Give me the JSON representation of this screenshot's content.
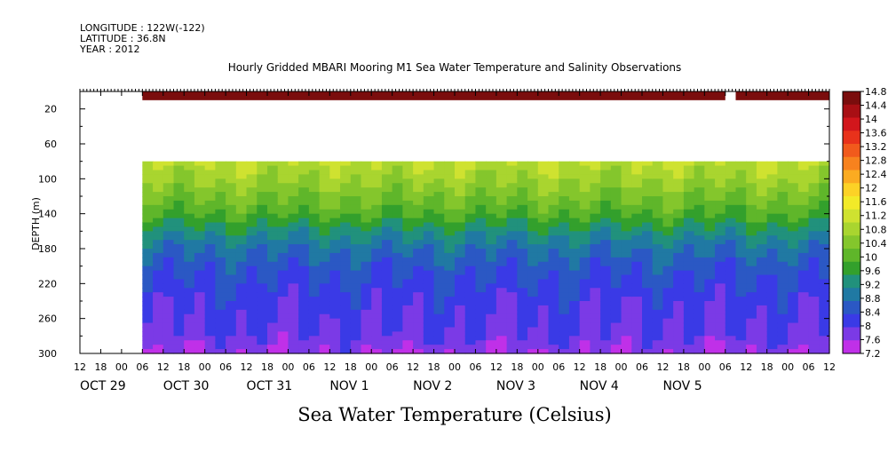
{
  "header": {
    "longitude": "LONGITUDE : 122W(-122)",
    "latitude": "LATITUDE : 36.8N",
    "year": "YEAR : 2012",
    "title": "Hourly Gridded MBARI Mooring M1 Sea Water Temperature and Salinity Observations"
  },
  "chart_data": {
    "type": "heatmap",
    "title": "Hourly Gridded MBARI Mooring M1 Sea Water Temperature and Salinity Observations",
    "xlabel": "",
    "ylabel": "DEPTH (m)",
    "caption": "Sea Water Temperature (Celsius)",
    "ylim": [
      0,
      300
    ],
    "y_reversed": true,
    "y_ticks": [
      20,
      60,
      100,
      140,
      180,
      220,
      260,
      300
    ],
    "x_range_hours": [
      -12,
      204
    ],
    "x_start_label": "OCT 29 12:00",
    "hour_labels": [
      "12",
      "18",
      "00",
      "06",
      "12",
      "18",
      "00",
      "06",
      "12",
      "18",
      "00",
      "06",
      "12",
      "18",
      "00",
      "06",
      "12",
      "18",
      "00",
      "06",
      "12",
      "18",
      "00",
      "06",
      "12",
      "18",
      "00",
      "06",
      "12",
      "18",
      "00",
      "06",
      "12",
      "18",
      "00",
      "06",
      "12"
    ],
    "date_labels": [
      {
        "label": "OCT 29",
        "hour": -12
      },
      {
        "label": "OCT 30",
        "hour": 12
      },
      {
        "label": "OCT 31",
        "hour": 36
      },
      {
        "label": "NOV  1",
        "hour": 60
      },
      {
        "label": "NOV  2",
        "hour": 84
      },
      {
        "label": "NOV  3",
        "hour": 108
      },
      {
        "label": "NOV  4",
        "hour": 132
      },
      {
        "label": "NOV  5",
        "hour": 156
      }
    ],
    "surface_band": {
      "depth_top": 0,
      "depth_bottom": 10,
      "temp": 14.5,
      "gap_hours": [
        174,
        177
      ]
    },
    "data_start_hour": 6,
    "deep_data_top_depth": 80,
    "temperature_profile": [
      {
        "depth": 80,
        "temp": 11.0
      },
      {
        "depth": 100,
        "temp": 10.7
      },
      {
        "depth": 120,
        "temp": 10.3
      },
      {
        "depth": 140,
        "temp": 9.9
      },
      {
        "depth": 160,
        "temp": 9.3
      },
      {
        "depth": 180,
        "temp": 8.8
      },
      {
        "depth": 200,
        "temp": 8.5
      },
      {
        "depth": 220,
        "temp": 8.3
      },
      {
        "depth": 240,
        "temp": 8.1
      },
      {
        "depth": 260,
        "temp": 8.0
      },
      {
        "depth": 280,
        "temp": 7.9
      },
      {
        "depth": 300,
        "temp": 7.6
      }
    ],
    "colorbar": {
      "min": 7.2,
      "max": 14.8,
      "labels": [
        "14.8",
        "14.4",
        "14",
        "13.6",
        "13.2",
        "12.8",
        "12.4",
        "12",
        "11.6",
        "11.2",
        "10.8",
        "10.4",
        "10",
        "9.6",
        "9.2",
        "8.8",
        "8.4",
        "8",
        "7.6",
        "7.2"
      ],
      "colors": [
        "#7a0d0d",
        "#a80f14",
        "#d2161c",
        "#e8321b",
        "#f15a1c",
        "#f7821e",
        "#fbab21",
        "#fcd226",
        "#f2ea28",
        "#cfe230",
        "#a9d52f",
        "#84c62c",
        "#5fb62a",
        "#33a02c",
        "#21917c",
        "#2079a3",
        "#2b58c4",
        "#3a3ae6",
        "#7b3ae6",
        "#c030e8"
      ]
    }
  }
}
